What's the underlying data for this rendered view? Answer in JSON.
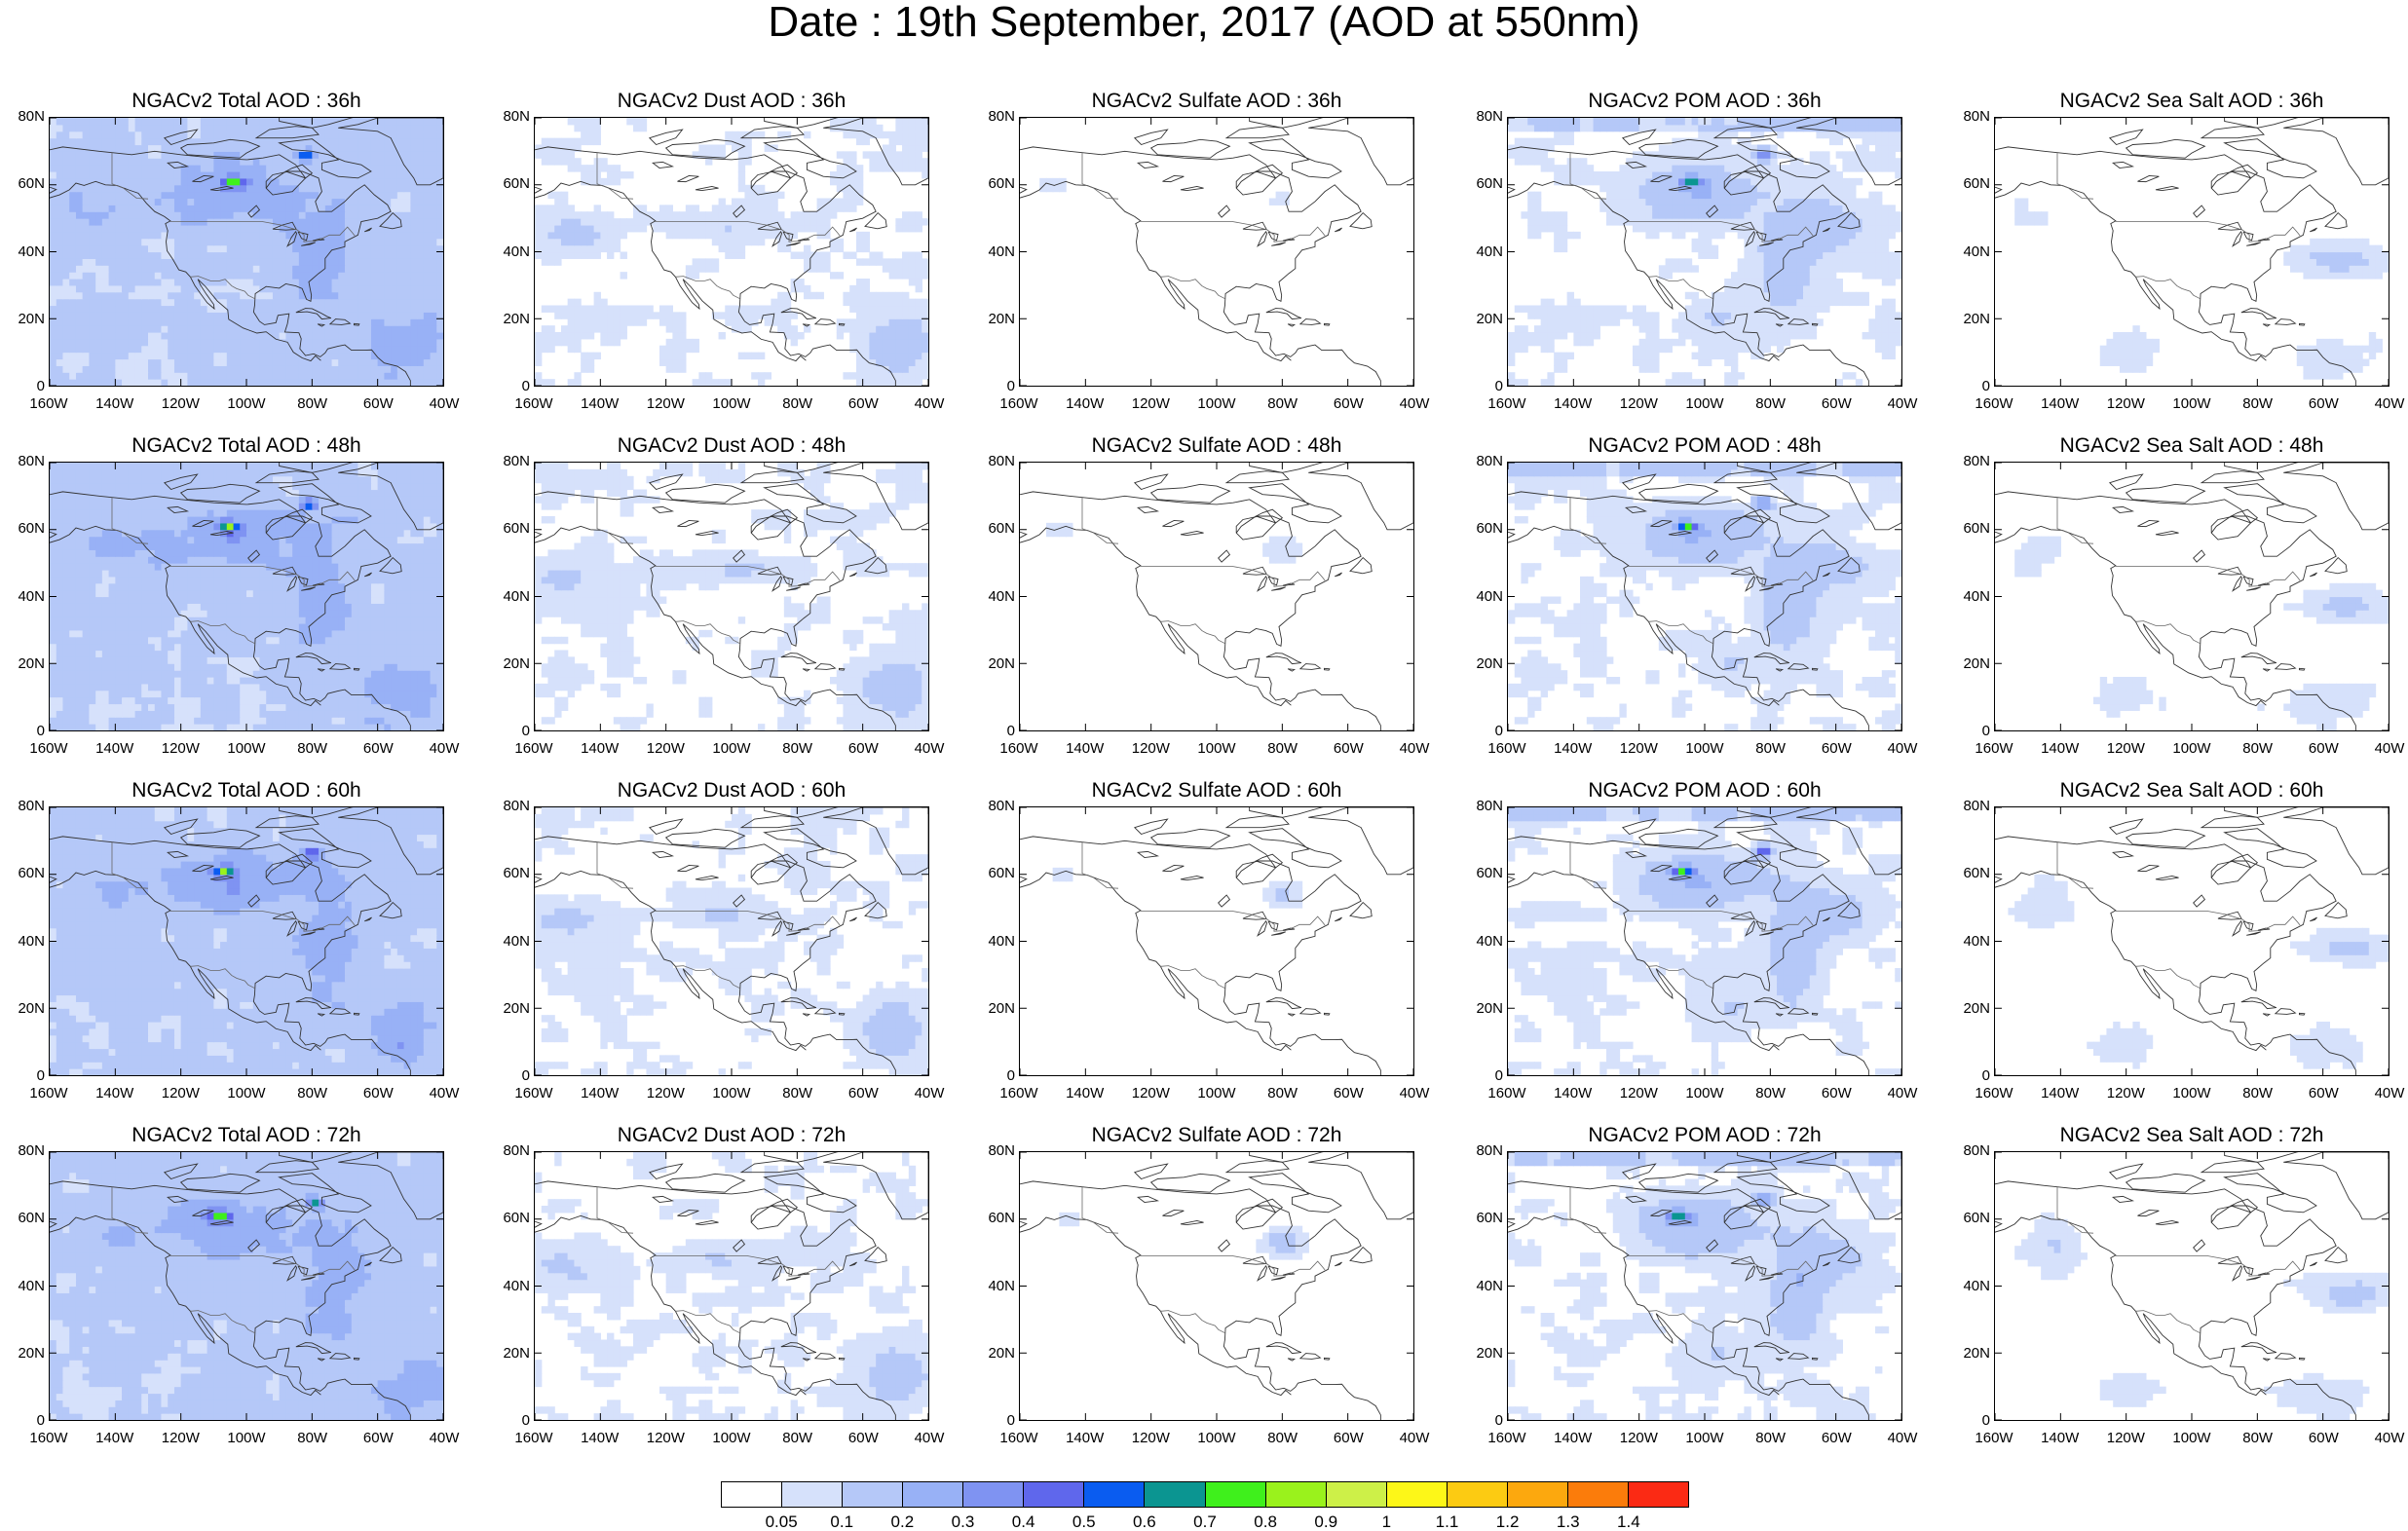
{
  "figure_title": "Date : 19th September, 2017 (AOD at 550nm)",
  "panels": [
    [
      {
        "title": "NGACv2 Total AOD : 36h",
        "kind": "total",
        "hour": 36
      },
      {
        "title": "NGACv2 Dust AOD : 36h",
        "kind": "dust",
        "hour": 36
      },
      {
        "title": "NGACv2 Sulfate AOD : 36h",
        "kind": "sulfate",
        "hour": 36
      },
      {
        "title": "NGACv2 POM AOD : 36h",
        "kind": "pom",
        "hour": 36
      },
      {
        "title": "NGACv2 Sea Salt AOD : 36h",
        "kind": "seasalt",
        "hour": 36
      }
    ],
    [
      {
        "title": "NGACv2 Total AOD : 48h",
        "kind": "total",
        "hour": 48
      },
      {
        "title": "NGACv2 Dust AOD : 48h",
        "kind": "dust",
        "hour": 48
      },
      {
        "title": "NGACv2 Sulfate AOD : 48h",
        "kind": "sulfate",
        "hour": 48
      },
      {
        "title": "NGACv2 POM AOD : 48h",
        "kind": "pom",
        "hour": 48
      },
      {
        "title": "NGACv2 Sea Salt AOD : 48h",
        "kind": "seasalt",
        "hour": 48
      }
    ],
    [
      {
        "title": "NGACv2 Total AOD : 60h",
        "kind": "total",
        "hour": 60
      },
      {
        "title": "NGACv2 Dust AOD : 60h",
        "kind": "dust",
        "hour": 60
      },
      {
        "title": "NGACv2 Sulfate AOD : 60h",
        "kind": "sulfate",
        "hour": 60
      },
      {
        "title": "NGACv2 POM AOD : 60h",
        "kind": "pom",
        "hour": 60
      },
      {
        "title": "NGACv2 Sea Salt AOD : 60h",
        "kind": "seasalt",
        "hour": 60
      }
    ],
    [
      {
        "title": "NGACv2 Total AOD : 72h",
        "kind": "total",
        "hour": 72
      },
      {
        "title": "NGACv2 Dust AOD : 72h",
        "kind": "dust",
        "hour": 72
      },
      {
        "title": "NGACv2 Sulfate AOD : 72h",
        "kind": "sulfate",
        "hour": 72
      },
      {
        "title": "NGACv2 POM AOD : 72h",
        "kind": "pom",
        "hour": 72
      },
      {
        "title": "NGACv2 Sea Salt  AOD : 72h",
        "kind": "seasalt",
        "hour": 72
      }
    ]
  ],
  "map_extent": {
    "lon_min": -160,
    "lon_max": -40,
    "lat_min": 0,
    "lat_max": 80
  },
  "x_ticks": [
    "160W",
    "140W",
    "120W",
    "100W",
    "80W",
    "60W",
    "40W"
  ],
  "y_ticks": [
    "0",
    "20N",
    "40N",
    "60N",
    "80N"
  ],
  "colorbar": {
    "colors": [
      "#ffffff",
      "#d6e1fb",
      "#b5c8f8",
      "#98b1f6",
      "#7f93f2",
      "#5f67ec",
      "#0a5cf0",
      "#0b9591",
      "#3ff01c",
      "#9af21c",
      "#cdf048",
      "#fdf718",
      "#fccb12",
      "#fca80e",
      "#fb7c0b",
      "#fb2a14"
    ],
    "labels": [
      "0.05",
      "0.1",
      "0.2",
      "0.3",
      "0.4",
      "0.5",
      "0.6",
      "0.7",
      "0.8",
      "0.9",
      "1",
      "1.1",
      "1.2",
      "1.3",
      "1.4"
    ]
  }
}
